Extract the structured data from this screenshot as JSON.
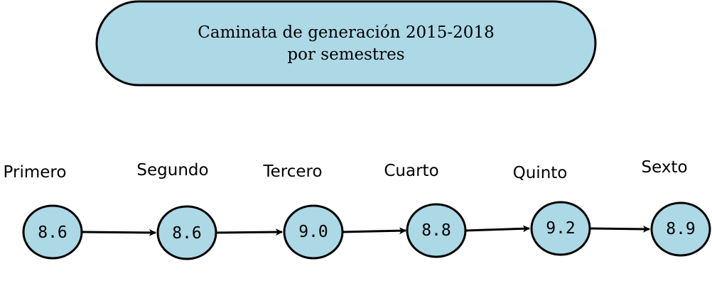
{
  "title": {
    "line1": "Caminata de generación 2015-2018",
    "line2": "por semestres"
  },
  "steps": [
    {
      "label": "Primero",
      "value": "8.6"
    },
    {
      "label": "Segundo",
      "value": "8.6"
    },
    {
      "label": "Tercero",
      "value": "9.0"
    },
    {
      "label": "Cuarto",
      "value": "8.8"
    },
    {
      "label": "Quinto",
      "value": "9.2"
    },
    {
      "label": "Sexto",
      "value": "8.9"
    }
  ],
  "colors": {
    "node_fill": "#add8e6",
    "stroke": "#000000"
  }
}
